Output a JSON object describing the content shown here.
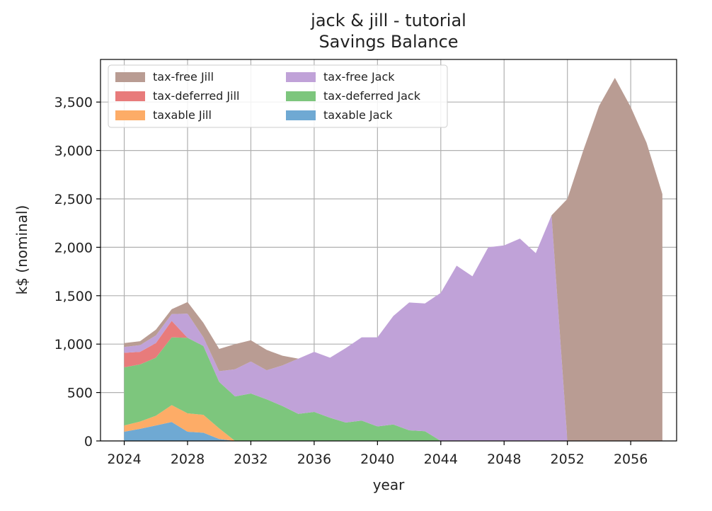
{
  "chart_data": {
    "type": "area",
    "title": "jack & jill - tutorial",
    "subtitle": "Savings Balance",
    "xlabel": "year",
    "ylabel": "k$ (nominal)",
    "xlim": [
      2022.5,
      2058.9
    ],
    "ylim": [
      0,
      3940
    ],
    "xticks": [
      2024,
      2028,
      2032,
      2036,
      2040,
      2044,
      2048,
      2052,
      2056
    ],
    "xtick_labels": [
      "2024",
      "2028",
      "2032",
      "2036",
      "2040",
      "2044",
      "2048",
      "2052",
      "2056"
    ],
    "yticks": [
      0,
      500,
      1000,
      1500,
      2000,
      2500,
      3000,
      3500
    ],
    "ytick_labels": [
      "0",
      "500",
      "1,000",
      "1,500",
      "2,000",
      "2,500",
      "3,000",
      "3,500"
    ],
    "grid": true,
    "stacked": true,
    "legend_position": "top-left",
    "legend_order": [
      5,
      3,
      1,
      4,
      2,
      0
    ],
    "x": [
      2024,
      2025,
      2026,
      2027,
      2028,
      2029,
      2030,
      2031,
      2032,
      2033,
      2034,
      2035,
      2036,
      2037,
      2038,
      2039,
      2040,
      2041,
      2042,
      2043,
      2044,
      2045,
      2046,
      2047,
      2048,
      2049,
      2050,
      2051,
      2052,
      2053,
      2054,
      2055,
      2056,
      2057,
      2058
    ],
    "series": [
      {
        "name": "taxable Jack",
        "color": "#6fa9d3",
        "values": [
          95,
          125,
          160,
          195,
          95,
          85,
          20,
          0,
          0,
          0,
          0,
          0,
          0,
          0,
          0,
          0,
          0,
          0,
          0,
          0,
          0,
          0,
          0,
          0,
          0,
          0,
          0,
          0,
          0,
          0,
          0,
          0,
          0,
          0,
          0
        ]
      },
      {
        "name": "taxable Jill",
        "color": "#fdac67",
        "values": [
          65,
          75,
          100,
          175,
          190,
          185,
          110,
          0,
          0,
          0,
          0,
          0,
          0,
          0,
          0,
          0,
          0,
          0,
          0,
          0,
          0,
          0,
          0,
          0,
          0,
          0,
          0,
          0,
          0,
          0,
          0,
          0,
          0,
          0,
          0
        ]
      },
      {
        "name": "tax-deferred Jack",
        "color": "#7dc67d",
        "values": [
          600,
          590,
          600,
          700,
          780,
          710,
          480,
          460,
          490,
          430,
          360,
          280,
          300,
          240,
          190,
          210,
          150,
          170,
          110,
          100,
          0,
          0,
          0,
          0,
          0,
          0,
          0,
          0,
          0,
          0,
          0,
          0,
          0,
          0,
          0
        ]
      },
      {
        "name": "tax-deferred Jill",
        "color": "#e87b7b",
        "values": [
          150,
          130,
          150,
          170,
          0,
          0,
          0,
          0,
          0,
          0,
          0,
          0,
          0,
          0,
          0,
          0,
          0,
          0,
          0,
          0,
          0,
          0,
          0,
          0,
          0,
          0,
          0,
          0,
          0,
          0,
          0,
          0,
          0,
          0,
          0
        ]
      },
      {
        "name": "tax-free Jack",
        "color": "#c0a2d8",
        "values": [
          60,
          70,
          80,
          70,
          250,
          90,
          110,
          280,
          330,
          300,
          420,
          570,
          620,
          620,
          770,
          860,
          920,
          1120,
          1320,
          1320,
          1530,
          1810,
          1700,
          2000,
          2020,
          2090,
          1940,
          2330,
          0,
          0,
          0,
          0,
          0,
          0,
          0
        ]
      },
      {
        "name": "tax-free Jill",
        "color": "#b99c93",
        "values": [
          40,
          40,
          60,
          50,
          120,
          150,
          230,
          260,
          220,
          210,
          100,
          0,
          0,
          0,
          0,
          0,
          0,
          0,
          0,
          0,
          0,
          0,
          0,
          0,
          0,
          0,
          0,
          0,
          2500,
          3000,
          3460,
          3750,
          3450,
          3080,
          2550
        ]
      }
    ]
  }
}
